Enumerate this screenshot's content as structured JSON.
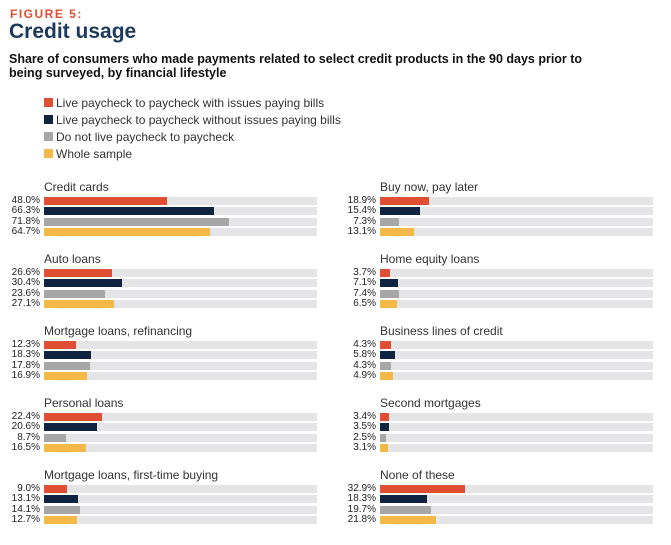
{
  "figure_label": "FIGURE 5:",
  "title": "Credit usage",
  "subtitle": "Share of consumers who made payments related to select credit products in the 90 days prior to being surveyed, by financial lifestyle",
  "chart_data": {
    "type": "bar",
    "title": "Credit usage",
    "series": [
      {
        "name": "Live paycheck to paycheck with issues paying bills",
        "color": "#e04e33"
      },
      {
        "name": "Live paycheck to paycheck without issues paying bills",
        "color": "#0f2440"
      },
      {
        "name": "Do not live paycheck to paycheck",
        "color": "#a6a6a8"
      },
      {
        "name": "Whole sample",
        "color": "#f5b94a"
      }
    ],
    "xlim": [
      0,
      100
    ],
    "panels": [
      {
        "category": "Credit cards",
        "values": [
          48.0,
          66.3,
          71.8,
          64.7
        ],
        "labels": [
          "48.0%",
          "66.3%",
          "71.8%",
          "64.7%"
        ]
      },
      {
        "category": "Auto loans",
        "values": [
          26.6,
          30.4,
          23.6,
          27.1
        ],
        "labels": [
          "26.6%",
          "30.4%",
          "23.6%",
          "27.1%"
        ]
      },
      {
        "category": "Mortgage loans, refinancing",
        "values": [
          12.3,
          18.3,
          17.8,
          16.9
        ],
        "labels": [
          "12.3%",
          "18.3%",
          "17.8%",
          "16.9%"
        ]
      },
      {
        "category": "Personal loans",
        "values": [
          22.4,
          20.6,
          8.7,
          16.5
        ],
        "labels": [
          "22.4%",
          "20.6%",
          "8.7%",
          "16.5%"
        ]
      },
      {
        "category": "Mortgage loans, first-time buying",
        "values": [
          9.0,
          13.1,
          14.1,
          12.7
        ],
        "labels": [
          "9.0%",
          "13.1%",
          "14.1%",
          "12.7%"
        ]
      },
      {
        "category": "Buy now, pay later",
        "values": [
          18.9,
          15.4,
          7.3,
          13.1
        ],
        "labels": [
          "18.9%",
          "15.4%",
          "7.3%",
          "13.1%"
        ]
      },
      {
        "category": "Home equity loans",
        "values": [
          3.7,
          7.1,
          7.4,
          6.5
        ],
        "labels": [
          "3.7%",
          "7.1%",
          "7.4%",
          "6.5%"
        ]
      },
      {
        "category": "Business lines of credit",
        "values": [
          4.3,
          5.8,
          4.3,
          4.9
        ],
        "labels": [
          "4.3%",
          "5.8%",
          "4.3%",
          "4.9%"
        ]
      },
      {
        "category": "Second mortgages",
        "values": [
          3.4,
          3.5,
          2.5,
          3.1
        ],
        "labels": [
          "3.4%",
          "3.5%",
          "2.5%",
          "3.1%"
        ]
      },
      {
        "category": "None of these",
        "values": [
          32.9,
          18.3,
          19.7,
          21.8
        ],
        "labels": [
          "32.9%",
          "18.3%",
          "19.7%",
          "21.8%"
        ]
      }
    ]
  }
}
